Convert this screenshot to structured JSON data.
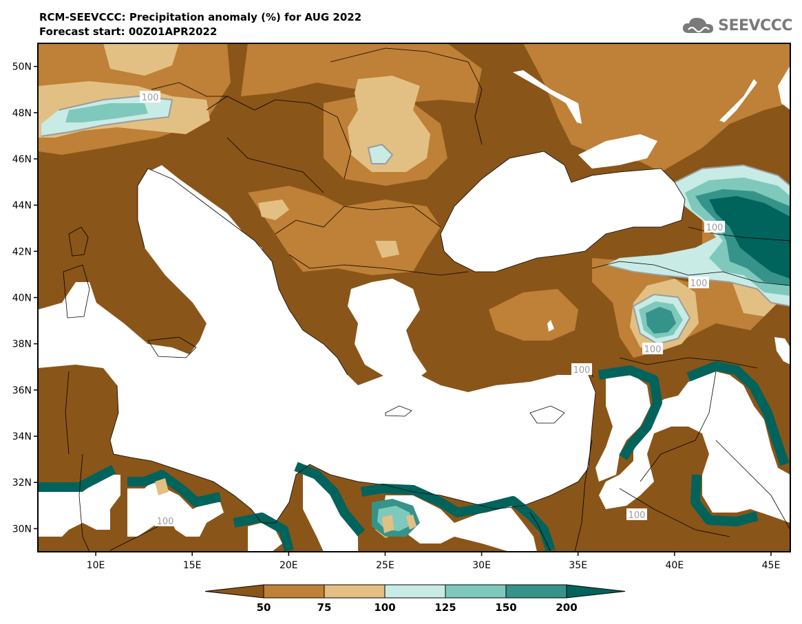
{
  "header": {
    "title": "RCM-SEEVCCC: Precipitation anomaly (%) for AUG 2022",
    "subtitle": "Forecast start: 00Z01APR2022",
    "logo_text": "SEEVCCC"
  },
  "map": {
    "lon_range": [
      7,
      46
    ],
    "lat_range": [
      29,
      51
    ],
    "lat_ticks": [
      "30N",
      "32N",
      "34N",
      "36N",
      "38N",
      "40N",
      "42N",
      "44N",
      "46N",
      "48N",
      "50N"
    ],
    "lon_ticks": [
      "10E",
      "15E",
      "20E",
      "25E",
      "30E",
      "35E",
      "40E",
      "45E"
    ],
    "contour_labels": [
      "100",
      "100",
      "100",
      "100",
      "100",
      "100",
      "100"
    ]
  },
  "colorbar": {
    "levels": [
      "50",
      "75",
      "100",
      "125",
      "150",
      "200"
    ],
    "colors": [
      "#8a5518",
      "#bf8037",
      "#e2c083",
      "#c8ebe6",
      "#7fc9bc",
      "#35938a",
      "#00635c"
    ]
  },
  "colors": {
    "very_dry": "#8a5518",
    "dry": "#bf8037",
    "slightly_dry": "#e2c083",
    "slightly_wet": "#c8ebe6",
    "wet": "#7fc9bc",
    "very_wet": "#35938a",
    "extreme_wet": "#00635c",
    "contour_100": "#9b9b9b"
  }
}
